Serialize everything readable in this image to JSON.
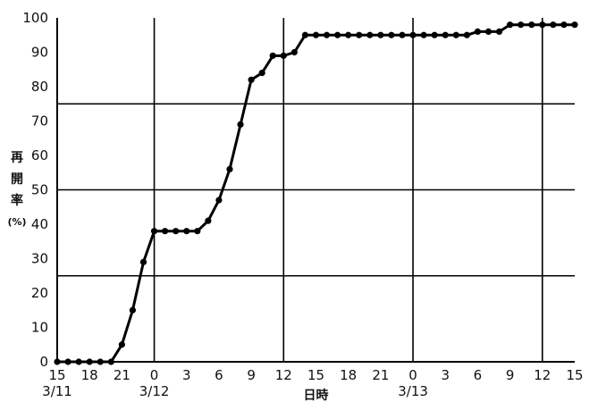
{
  "chart_data": {
    "type": "line",
    "title": "",
    "xlabel": "日時",
    "ylabel": [
      "再",
      "開",
      "率",
      "(%)"
    ],
    "ylim": [
      0,
      100
    ],
    "y_ticks": [
      "0",
      "10",
      "20",
      "30",
      "40",
      "50",
      "60",
      "70",
      "80",
      "90",
      "100"
    ],
    "x_ticks": [
      {
        "hour": 0,
        "label": "15",
        "date": "3/11"
      },
      {
        "hour": 3,
        "label": "18"
      },
      {
        "hour": 6,
        "label": "21"
      },
      {
        "hour": 9,
        "label": "0",
        "date": "3/12"
      },
      {
        "hour": 12,
        "label": "3"
      },
      {
        "hour": 15,
        "label": "6"
      },
      {
        "hour": 18,
        "label": "9"
      },
      {
        "hour": 21,
        "label": "12"
      },
      {
        "hour": 24,
        "label": "15"
      },
      {
        "hour": 27,
        "label": "18"
      },
      {
        "hour": 30,
        "label": "21"
      },
      {
        "hour": 33,
        "label": "0",
        "date": "3/13"
      },
      {
        "hour": 36,
        "label": "3"
      },
      {
        "hour": 39,
        "label": "6"
      },
      {
        "hour": 42,
        "label": "9"
      },
      {
        "hour": 45,
        "label": "12"
      },
      {
        "hour": 48,
        "label": "15"
      }
    ],
    "series": [
      {
        "color": "#000000",
        "x": [
          0,
          1,
          2,
          3,
          4,
          5,
          6,
          7,
          8,
          9,
          10,
          11,
          12,
          13,
          14,
          15,
          16,
          17,
          18,
          19,
          20,
          21,
          22,
          23,
          24,
          25,
          26,
          27,
          28,
          29,
          30,
          31,
          32,
          33,
          34,
          35,
          36,
          37,
          38,
          39,
          40,
          41,
          42,
          43,
          44,
          45,
          46,
          47,
          48
        ],
        "y": [
          0,
          0,
          0,
          0,
          0,
          0,
          5,
          15,
          29,
          38,
          38,
          38,
          38,
          38,
          41,
          47,
          56,
          69,
          82,
          84,
          89,
          89,
          90,
          95,
          95,
          95,
          95,
          95,
          95,
          95,
          95,
          95,
          95,
          95,
          95,
          95,
          95,
          95,
          95,
          96,
          96,
          96,
          98,
          98,
          98,
          98,
          98,
          98,
          98
        ]
      }
    ]
  }
}
